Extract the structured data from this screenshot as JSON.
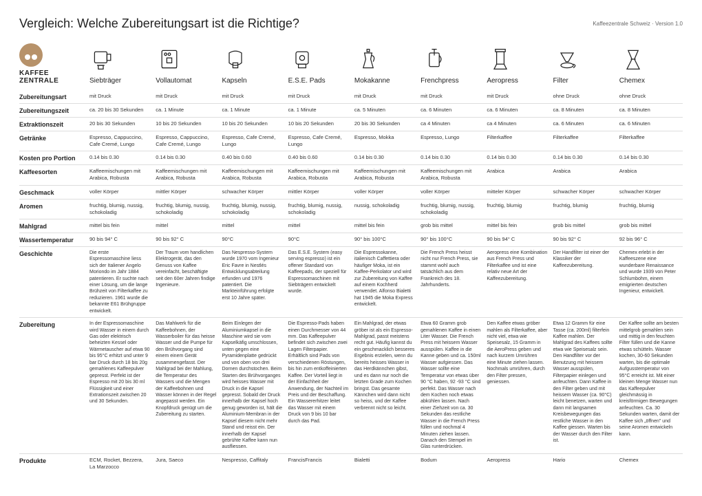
{
  "header": {
    "title": "Vergleich: Welche Zubereitungsart ist die Richtige?",
    "version": "Kaffeezentrale Schweiz · Version 1.0"
  },
  "brand": {
    "line1": "KAFFEE",
    "line2": "ZENTRALE"
  },
  "methods": [
    {
      "key": "siebtraeger",
      "label": "Siebträger"
    },
    {
      "key": "vollautomat",
      "label": "Vollautomat"
    },
    {
      "key": "kapseln",
      "label": "Kapseln"
    },
    {
      "key": "ese",
      "label": "E.S.E. Pads"
    },
    {
      "key": "mokakanne",
      "label": "Mokakanne"
    },
    {
      "key": "frenchpress",
      "label": "Frenchpress"
    },
    {
      "key": "aeropress",
      "label": "Aeropress"
    },
    {
      "key": "filter",
      "label": "Filter"
    },
    {
      "key": "chemex",
      "label": "Chemex"
    }
  ],
  "rows": [
    {
      "label": "Zubereitungsart",
      "cells": [
        "mit Druck",
        "mit Druck",
        "mit Druck",
        "mit Druck",
        "mit Druck",
        "mit Druck",
        "mit Druck",
        "ohne Druck",
        "ohne Druck"
      ]
    },
    {
      "label": "Zubereitungszeit",
      "cells": [
        "ca. 20 bis 30 Sekunden",
        "ca. 1 Minute",
        "ca. 1 Minute",
        "ca. 1 Minute",
        "ca. 5 Minuten",
        "ca. 6 Minuten",
        "ca. 6 Minuten",
        "ca. 8 Minuten",
        "ca. 8 Minuten"
      ]
    },
    {
      "label": "Extraktionszeit",
      "cells": [
        "20 bis 30 Sekunden",
        "10 bis 20 Sekunden",
        "10 bis 20 Sekunden",
        "10 bis 20 Sekunden",
        "20 bis 30 Sekunden",
        "ca 4 Minuten",
        "ca 4 Minuten",
        "ca. 6 Minuten",
        "ca. 6 Minuten"
      ]
    },
    {
      "label": "Getränke",
      "cells": [
        "Espresso, Cappuccino, Cafe Cremé, Lungo",
        "Espresso, Cappuccino, Cafe Cremé, Lungo",
        "Espresso, Cafe Cremé, Lungo",
        "Espresso, Cafe Cremé, Lungo",
        "Espresso, Mokka",
        "Espresso, Lungo",
        "Filterkaffee",
        "Filterkaffee",
        "Filterkaffee"
      ]
    },
    {
      "label": "Kosten pro Portion",
      "cells": [
        "0.14 bis 0.30",
        "0.14 bis 0.30",
        "0.40 bis 0.60",
        "0.40 bis 0.60",
        "0.14 bis 0.30",
        "0.14 bis 0.30",
        "0.14 bis 0.30",
        "0.14 bis 0.30",
        "0.14 bis 0.30"
      ]
    },
    {
      "label": "Kaffeesorten",
      "cells": [
        "Kaffeemischungen mit Arabica, Robusta",
        "Kaffeemischungen mit Arabica, Robusta",
        "Kaffeemischungen mit Arabica, Robusta",
        "Kaffeemischungen mit Arabica, Robusta",
        "Kaffeemischungen mit Arabica, Robusta",
        "Kaffeemischungen mit Arabica, Robusta",
        "Arabica",
        "Arabica",
        "Arabica"
      ]
    },
    {
      "label": "Geschmack",
      "cells": [
        "voller Körper",
        "mittler Körper",
        "schwacher Körper",
        "mittler Körper",
        "voller Körper",
        "voller Körper",
        "mitteler Körper",
        "schwacher Körper",
        "schwacher Körper"
      ]
    },
    {
      "label": "Aromen",
      "cells": [
        "fruchtig, blumig, nussig, schokoladig",
        "fruchtig, blumig, nussig, schokoladig",
        "fruchtig, blumig, nussig, schokoladig",
        "fruchtig, blumig, nussig, schokoladig",
        "nussig, schokoladig",
        "fruchtig, blumig, nussig, schokoladig",
        "fruchtig, blumig",
        "fruchtig, blumig",
        "fruchtig, blumig"
      ]
    },
    {
      "label": "Mahlgrad",
      "cells": [
        "mittel bis fein",
        "mittel",
        "mittel",
        "mittel",
        "mittel bis fein",
        "grob bis mittel",
        "mittel bis fein",
        "grob bis mittel",
        "grob bis mittel"
      ]
    },
    {
      "label": "Wassertemperatur",
      "cells": [
        "90 bis 94° C",
        "90 bis 92° C",
        "90°C",
        "90°C",
        "90° bis 100°C",
        "90° bis 100°C",
        "90 bis 94° C",
        "90 bis 92° C",
        "92 bis 96° C"
      ]
    },
    {
      "label": "Geschichte",
      "long": true,
      "cells": [
        "Die erste Espressomaschine liess sich der Italiener Angelo Moriondo im Jahr 1884 patentieren. Er suchte nach einer Lösung, um die lange Brühzeit von Filterkaffee zu reduzieren. 1961 wurde die bekannte E61 Brühgruppe entwickelt.",
        "Der Traum vom handlichen Elektrogerät, das den Genuss von Kaffee vereinfacht, beschäftigte seit den 60er Jahren findige Ingenieure.",
        "Das Nespresso-System wurde 1970 vom Ingenieur Eric Favre in Nestlés Entwicklungsabteilung erfunden und 1976 patentiert. Die Markteinführung erfolgte erst 10 Jahre später.",
        "Das E.S.E. System (easy serving espresso) ist ein offener Standard von Kaffeepads, der speziell für Espressomaschinen mit Siebträgern entwickelt wurde.",
        "Die Espressokanne, italienisch Caffettiera oder häufiger Moka, ist ein Kaffee-Perkolator und wird zur Zubereitung von Kaffee auf einem Kochherd verwendet. Alfonso Bialetti hat 1945 die Moka Express entwickelt.",
        "Die French Press heisst nicht nur French Press, sie stammt wohl auch tatsächlich aus dem Frankreich des 18. Jahrhunderts.",
        "Aeropress eine Kombination aus French Press und Filterkaffee und ist eine relativ neue Art der Kaffeezubereitung.",
        "Der Handfilter ist einer der Klassiker der Kaffeezubereitung.",
        "Chemex erlebt in der Kaffeeszene eine wunderbare Renaissance und wurde 1939 von Peter Schlumbohm, einem emigrierten deutschen Ingenieur, entwickelt."
      ]
    },
    {
      "label": "Zubereitung",
      "long": true,
      "cells": [
        "In der Espressomaschine wird Wasser in einem durch Gas oder elektrisch beheizten Kessel oder Wärmetauscher auf etwa 90 bis 95°C erhitzt und unter 9 bar Druck durch 18 bis 20g gemahlenes Kaffeepulver gepresst. Perfekt ist der Espresso mit 20 bis 30 ml Flüssigkeit und einer Extrationszeit zwischen 20 und 30 Sekunden.",
        "Das Mahlwerk für die Kaffeebohnen, der Wasserboiler für das heisse Wasser und die Pumpe für den Brühvorgang sind einem einem Gerät zusammengefasst. Der Mahlgrad bei der Mahlung, die Temperatur des Wassers und die Mengen der Kaffeebohnen und Wasser können in der Regel angepasst werden. Ein Knopfdruck genügt um die Zubereitung zu starten.",
        "Beim Einlegen der Aluminiumkapsel in die Maschine wird sie vom Kapselkäfig umschlossen, unten gegen eine Pyramidenplatte gedrückt und von oben von drei Dornen durchstochen. Beim Starten des Brühvorganges wird heisses Wasser mit Druck in die Kapsel gepresst. Sobald der Druck innerhalb der Kapsel hoch genug geworden ist, hält die Aluminium-Membran in der Kapsel diesem nicht mehr Stand und reisst ein. Der innerhalb der Kapsel gebrühte Kaffee kann nun ausfliessen.",
        "Die Espresso-Pads haben einen Durchmesser von 44 mm. Das Kaffeepulver befindet sich zwischen zwei Lagen Filterpapier. Erhältlich sind Pads von verschiedenen Röstungen, bis hin zum entkoffeinierten Kaffee. Der Vorteil liegt in der Einfachheit der Anwendung, der Nachteil im Preis und der Beschaffung. Ein Wassererhitzer leitet das Wasser mit einem Druck von 9 bis 10 bar durch das Pad.",
        "Ein Mahlgrad, der etwas gröber ist als ein Espresso-Mahlgrad, passt meistens recht gut. Häufig kannst du ein geschmacklich besseres Ergebnis erzielen, wenn du bereits heisses Wasser in das Herdkännchen gibst, und es dann nur noch die letzten Grade zum Kochen bringst. Das gesamte Kännchen wird dann nicht so heiss, und der Kaffee verbrennt nicht so leicht.",
        "Etwa 60 Gramm grob gemahlenen Kaffee in einen Liter Wasser. Die French Press mit heissem Wasser ausspülen. Kaffee in die Kanne geben und ca. 150ml Wasser aufgiessen. Das Wasser sollte eine Temperatur von etwas über 90 °C haben, 92 -93 °C sind perfekt. Das Wasser nach dem Kochen noch etwas abkühlen lassen. Nach einer Ziehzeit von ca. 30 Sekunden das restliche Wasser in die French Press füllen und nochmal 4 Minuten ziehen lassen. Danach den Stempel im Glas runterdrücken.",
        "Den Kaffee etwas gröber mahlen als Filterkaffee, aber nicht viel, etwa wie Speisesalz, 15 Gramm in die AeroPress geben und nach kurzem Umrühren eine Minute ziehen lassen. Nochmals umrühren, durch den Filter pressen, geniessen.",
        "Etwa 12 Gramm für eine Tasse (ca. 200ml) filterfein Kaffee mahlen. Der Mahlgrad des Kaffees sollte etwa wie Speisesalz sein. Den Handfilter vor der Benutzung mit heissem Wasser ausspülen, Filterpapier einlegen und anfeuchten. Dann Kaffee in den Filter geben und mit heissem Wasser (ca. 90°C) leicht benetzen, warten und dann mit langsamen Kreisbewegungen das restliche Wasser in den Kaffee giessen. Warten bis der Wasser durch den Filter ist.",
        "Der Kaffee sollte am besten mittelgrob gemahlen sein und mittig in den feuchten Filter füllen und die Kanne etwas schütteln. Wasser kochen, 30-60 Sekunden warten, bis die optimale Aufgusstemperatur von 95°C erreicht ist. Mit einer kleinen Menge Wasser nun das Kaffeepulver gleichmässig in kreisförmigen Bewegungen anfeuchten. Ca. 30 Sekunden warten, damit der Kaffee sich „öffnen\" und seine Aromen entwickeln kann."
      ]
    },
    {
      "label": "Produkte",
      "cells": [
        "ECM, Rocket, Bezzera, La Marzocco",
        "Jura, Saeco",
        "Nespresso, Caffitaly",
        "FrancisFrancis",
        "Bialetti",
        "Bodum",
        "Aeropress",
        "Hario",
        "Chemex"
      ]
    }
  ],
  "style": {
    "page_bg": "#ffffff",
    "text_color": "#333333",
    "border_color": "#dddddd",
    "brand_color": "#b7926a",
    "title_fontsize": 18,
    "label_fontsize": 9,
    "cell_fontsize": 7.5
  }
}
